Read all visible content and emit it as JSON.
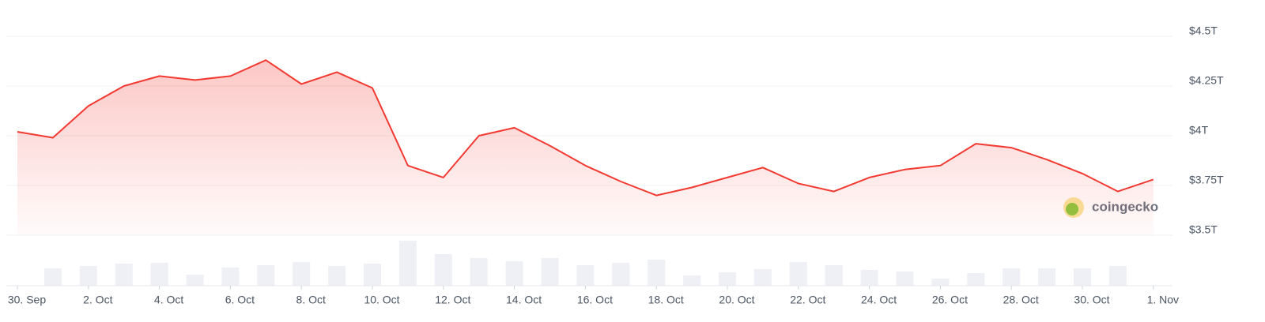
{
  "chart_data": {
    "type": "line",
    "categories": [
      "30. Sep",
      null,
      "2. Oct",
      null,
      "4. Oct",
      null,
      "6. Oct",
      null,
      "8. Oct",
      null,
      "10. Oct",
      null,
      "12. Oct",
      null,
      "14. Oct",
      null,
      "16. Oct",
      null,
      "18. Oct",
      null,
      "20. Oct",
      null,
      "22. Oct",
      null,
      "24. Oct",
      null,
      "26. Oct",
      null,
      "28. Oct",
      null,
      "30. Oct",
      null,
      "1. Nov"
    ],
    "values": [
      4.02,
      3.99,
      4.15,
      4.25,
      4.3,
      4.28,
      4.3,
      4.38,
      4.26,
      4.32,
      4.24,
      3.85,
      3.79,
      4.0,
      4.04,
      3.95,
      3.85,
      3.77,
      3.7,
      3.74,
      3.79,
      3.84,
      3.76,
      3.72,
      3.79,
      3.83,
      3.85,
      3.96,
      3.94,
      3.88,
      3.81,
      3.72,
      3.78
    ],
    "color": "#f23a32",
    "volume": {
      "color": "#eef0f5",
      "values": [
        null,
        88,
        100,
        112,
        116,
        56,
        92,
        104,
        120,
        100,
        112,
        228,
        160,
        140,
        124,
        140,
        104,
        116,
        132,
        52,
        68,
        84,
        120,
        104,
        80,
        72,
        36,
        64,
        88,
        88,
        88,
        100,
        null
      ]
    },
    "ylim": [
      3.5,
      4.5
    ],
    "yticks": [
      {
        "value": 3.5,
        "label": "$3.5T"
      },
      {
        "value": 3.75,
        "label": "$3.75T"
      },
      {
        "value": 4,
        "label": "$4T"
      },
      {
        "value": 4.25,
        "label": "$4.25T"
      },
      {
        "value": 4.5,
        "label": "$4.5T"
      }
    ],
    "grid": true,
    "watermark": "coingecko"
  }
}
